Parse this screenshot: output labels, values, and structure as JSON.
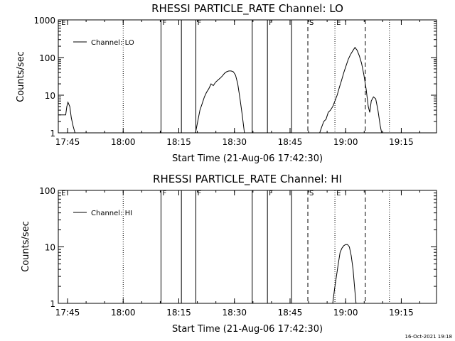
{
  "footer": {
    "timestamp": "16-Oct-2021 19:18"
  },
  "chart_data": [
    {
      "type": "line",
      "title": "RHESSI PARTICLE_RATE Channel: LO",
      "xlabel": "Start Time (21-Aug-06 17:42:30)",
      "ylabel": "Counts/sec",
      "x_unit": "minutes after 17:42:30",
      "xlim": [
        0,
        102
      ],
      "ylim": [
        1,
        1000
      ],
      "yscale": "log",
      "x_ticks": [
        {
          "x": 2.5,
          "label": "17:45"
        },
        {
          "x": 17.5,
          "label": "18:00"
        },
        {
          "x": 32.5,
          "label": "18:15"
        },
        {
          "x": 47.5,
          "label": "18:30"
        },
        {
          "x": 62.5,
          "label": "18:45"
        },
        {
          "x": 77.5,
          "label": "19:00"
        },
        {
          "x": 92.5,
          "label": "19:15"
        }
      ],
      "y_ticks": [
        {
          "y": 1,
          "label": "1"
        },
        {
          "y": 10,
          "label": "10"
        },
        {
          "y": 100,
          "label": "100"
        },
        {
          "y": 1000,
          "label": "1000"
        }
      ],
      "legend": {
        "label": "Channel: LO",
        "position": "top-left"
      },
      "markers": [
        {
          "x": 0.4,
          "style": "none",
          "flag": "E"
        },
        {
          "x": 17.5,
          "style": "dotted",
          "flag": ""
        },
        {
          "x": 27.7,
          "style": "solid",
          "flag": "F"
        },
        {
          "x": 33.2,
          "style": "solid",
          "flag": ""
        },
        {
          "x": 37.1,
          "style": "solid",
          "flag": "F"
        },
        {
          "x": 52.3,
          "style": "solid",
          "flag": ""
        },
        {
          "x": 56.4,
          "style": "solid",
          "flag": "F"
        },
        {
          "x": 62.9,
          "style": "solid",
          "flag": ""
        },
        {
          "x": 67.3,
          "style": "dashed",
          "flag": "S"
        },
        {
          "x": 74.6,
          "style": "dotted",
          "flag": "E"
        },
        {
          "x": 82.8,
          "style": "dashed",
          "flag": ""
        },
        {
          "x": 89.3,
          "style": "dotted",
          "flag": ""
        }
      ],
      "series": [
        {
          "name": "Channel: LO",
          "segments": [
            [
              [
                0,
                3
              ],
              [
                2,
                3
              ],
              [
                2.3,
                5
              ],
              [
                2.6,
                6.5
              ],
              [
                3.1,
                5
              ],
              [
                3.5,
                2.5
              ],
              [
                4,
                1.5
              ],
              [
                4.5,
                1
              ]
            ],
            [
              [
                37,
                1
              ],
              [
                37.6,
                2
              ],
              [
                38.2,
                4
              ],
              [
                38.8,
                6
              ],
              [
                39.4,
                9
              ],
              [
                40,
                12
              ],
              [
                40.6,
                15
              ],
              [
                41.2,
                20
              ],
              [
                41.8,
                18
              ],
              [
                42.4,
                22
              ],
              [
                43,
                25
              ],
              [
                43.6,
                28
              ],
              [
                44.2,
                32
              ],
              [
                44.8,
                38
              ],
              [
                45.4,
                42
              ],
              [
                46,
                44
              ],
              [
                46.6,
                44
              ],
              [
                47.2,
                42
              ],
              [
                47.8,
                34
              ],
              [
                48.4,
                20
              ],
              [
                49,
                8
              ],
              [
                49.6,
                3
              ],
              [
                50.2,
                1
              ]
            ],
            [
              [
                70.5,
                1
              ],
              [
                71,
                1.4
              ],
              [
                71.6,
                2
              ],
              [
                72.2,
                2.3
              ],
              [
                72.8,
                3.5
              ],
              [
                73.4,
                4
              ],
              [
                74,
                5
              ],
              [
                74.6,
                7
              ],
              [
                75.2,
                10
              ],
              [
                75.8,
                16
              ],
              [
                76.4,
                25
              ],
              [
                77,
                40
              ],
              [
                77.6,
                60
              ],
              [
                78.2,
                90
              ],
              [
                78.8,
                120
              ],
              [
                79.4,
                150
              ],
              [
                80,
                185
              ],
              [
                80.6,
                155
              ],
              [
                81.2,
                110
              ],
              [
                81.8,
                70
              ],
              [
                82.4,
                35
              ],
              [
                83,
                15
              ],
              [
                83.6,
                5
              ],
              [
                84,
                3.5
              ],
              [
                84.4,
                7
              ],
              [
                85,
                9
              ],
              [
                85.6,
                8
              ],
              [
                86.2,
                4
              ],
              [
                86.8,
                1.6
              ],
              [
                87.2,
                1
              ]
            ]
          ]
        }
      ]
    },
    {
      "type": "line",
      "title": "RHESSI PARTICLE_RATE Channel: HI",
      "xlabel": "Start Time (21-Aug-06 17:42:30)",
      "ylabel": "Counts/sec",
      "x_unit": "minutes after 17:42:30",
      "xlim": [
        0,
        102
      ],
      "ylim": [
        1,
        100
      ],
      "yscale": "log",
      "x_ticks": [
        {
          "x": 2.5,
          "label": "17:45"
        },
        {
          "x": 17.5,
          "label": "18:00"
        },
        {
          "x": 32.5,
          "label": "18:15"
        },
        {
          "x": 47.5,
          "label": "18:30"
        },
        {
          "x": 62.5,
          "label": "18:45"
        },
        {
          "x": 77.5,
          "label": "19:00"
        },
        {
          "x": 92.5,
          "label": "19:15"
        }
      ],
      "y_ticks": [
        {
          "y": 1,
          "label": "1"
        },
        {
          "y": 10,
          "label": "10"
        },
        {
          "y": 100,
          "label": "100"
        }
      ],
      "legend": {
        "label": "Channel: HI",
        "position": "top-left"
      },
      "markers": [
        {
          "x": 0.4,
          "style": "none",
          "flag": "E"
        },
        {
          "x": 17.5,
          "style": "dotted",
          "flag": ""
        },
        {
          "x": 27.7,
          "style": "solid",
          "flag": "F"
        },
        {
          "x": 33.2,
          "style": "solid",
          "flag": ""
        },
        {
          "x": 37.1,
          "style": "solid",
          "flag": "F"
        },
        {
          "x": 52.3,
          "style": "solid",
          "flag": ""
        },
        {
          "x": 56.4,
          "style": "solid",
          "flag": "F"
        },
        {
          "x": 62.9,
          "style": "solid",
          "flag": ""
        },
        {
          "x": 67.3,
          "style": "dashed",
          "flag": "S"
        },
        {
          "x": 74.6,
          "style": "dotted",
          "flag": "E"
        },
        {
          "x": 82.8,
          "style": "dashed",
          "flag": ""
        },
        {
          "x": 89.3,
          "style": "dotted",
          "flag": ""
        }
      ],
      "series": [
        {
          "name": "Channel: HI",
          "segments": [
            [
              [
                74,
                1
              ],
              [
                74.5,
                1.8
              ],
              [
                75,
                3
              ],
              [
                75.5,
                5
              ],
              [
                76,
                8
              ],
              [
                76.5,
                9.5
              ],
              [
                77,
                10.5
              ],
              [
                77.5,
                11
              ],
              [
                78,
                11
              ],
              [
                78.5,
                10
              ],
              [
                79,
                7
              ],
              [
                79.5,
                4
              ],
              [
                80,
                1.6
              ],
              [
                80.3,
                1
              ]
            ]
          ]
        }
      ]
    }
  ]
}
